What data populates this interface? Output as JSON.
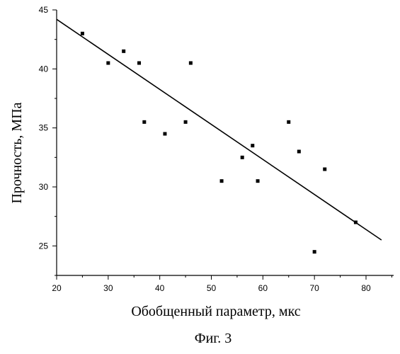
{
  "chart_data": {
    "type": "scatter",
    "title": "",
    "xlabel": "Обобщенный параметр, мкс",
    "ylabel": "Прочность, МПа",
    "caption": "Фиг. 3",
    "xlim": [
      20,
      85
    ],
    "ylim": [
      22.5,
      45
    ],
    "xticks": [
      "20",
      "30",
      "40",
      "50",
      "60",
      "70",
      "80"
    ],
    "yticks": [
      "25",
      "30",
      "35",
      "40",
      "45"
    ],
    "grid": false,
    "legend": "none",
    "series": [
      {
        "points": [
          [
            25,
            43
          ],
          [
            30,
            40.5
          ],
          [
            33,
            41.5
          ],
          [
            36,
            40.5
          ],
          [
            37,
            35.5
          ],
          [
            41,
            34.5
          ],
          [
            45,
            35.5
          ],
          [
            46,
            40.5
          ],
          [
            52,
            30.5
          ],
          [
            56,
            32.5
          ],
          [
            58,
            33.5
          ],
          [
            59,
            30.5
          ],
          [
            65,
            35.5
          ],
          [
            67,
            33
          ],
          [
            70,
            24.5
          ],
          [
            72,
            31.5
          ],
          [
            78,
            27
          ]
        ]
      }
    ],
    "trendline": {
      "x": [
        20,
        83
      ],
      "y": [
        44.2,
        25.5
      ]
    },
    "colors": {
      "marker": "#000000",
      "line": "#000000",
      "axis": "#000000"
    }
  }
}
